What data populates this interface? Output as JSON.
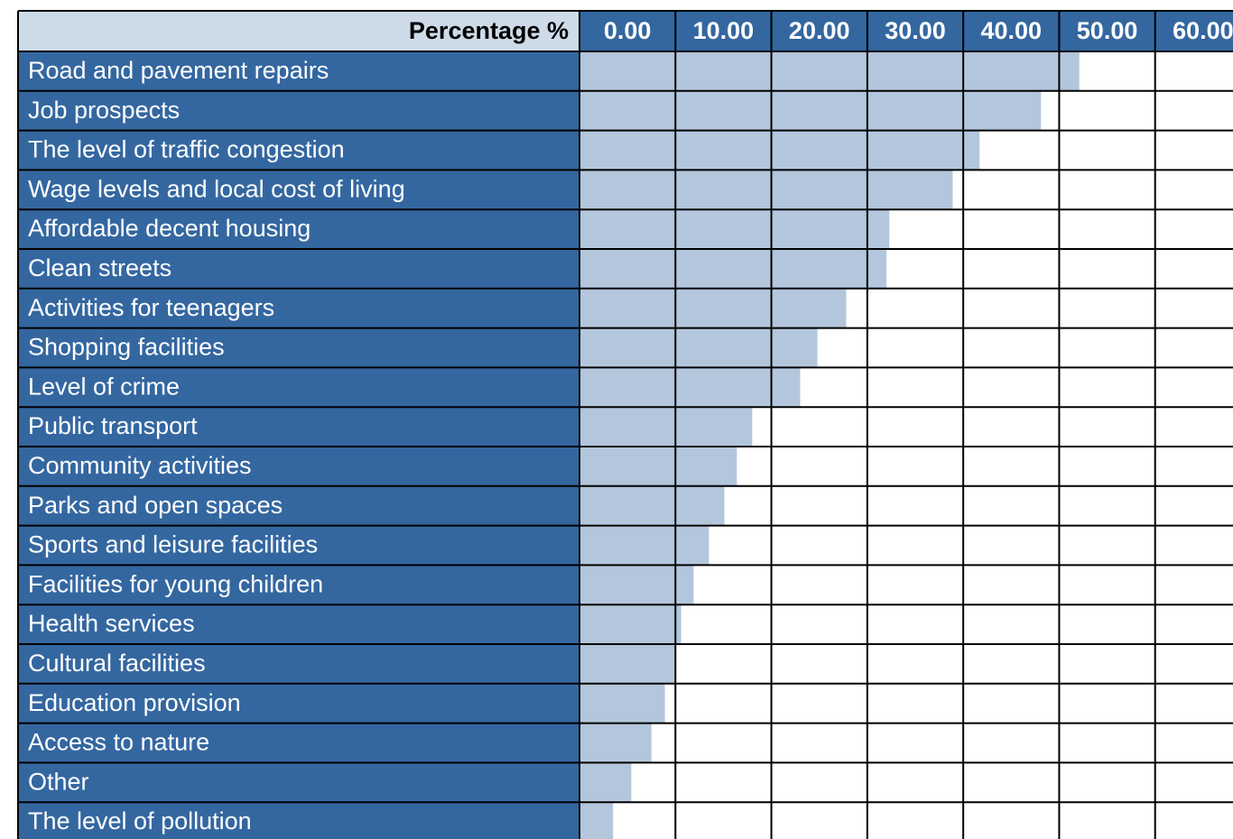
{
  "chart_data": {
    "type": "bar",
    "orientation": "horizontal",
    "x_label": "Percentage %",
    "categories": [
      "Road and pavement repairs",
      "Job prospects",
      "The level of traffic congestion",
      "Wage levels and local cost of living",
      "Affordable decent housing",
      "Clean streets",
      "Activities for teenagers",
      "Shopping facilities",
      "Level of crime",
      "Public transport",
      "Community activities",
      "Parks and open spaces",
      "Sports and leisure facilities",
      "Facilities for young children",
      "Health services",
      "Cultural facilities",
      "Education provision",
      "Access to nature",
      "Other",
      "The level of pollution"
    ],
    "values": [
      52.1,
      48.1,
      41.7,
      38.9,
      32.3,
      32.0,
      27.8,
      24.8,
      23.0,
      18.0,
      16.4,
      15.1,
      13.5,
      11.9,
      10.6,
      9.9,
      8.9,
      7.5,
      5.4,
      3.5
    ],
    "color": "#b3c6dc",
    "xlim": [
      0,
      70
    ],
    "xticks": [
      {
        "value": 0,
        "label": "0.00"
      },
      {
        "value": 10,
        "label": "10.00"
      },
      {
        "value": 20,
        "label": "20.00"
      },
      {
        "value": 30,
        "label": "30.00"
      },
      {
        "value": 40,
        "label": "40.00"
      },
      {
        "value": 50,
        "label": "50.00"
      },
      {
        "value": 60,
        "label": "60.00"
      }
    ],
    "grid": true
  }
}
